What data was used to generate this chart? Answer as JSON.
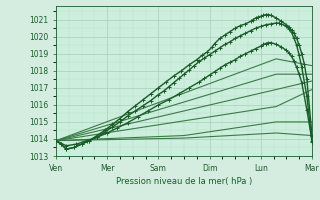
{
  "background_color": "#d4ede0",
  "plot_bg": "#cceedd",
  "grid_color_major": "#aaccbb",
  "grid_color_minor": "#bbddcc",
  "line_color_dark": "#1a5c28",
  "line_color_light": "#3a7a46",
  "xlabel": "Pression niveau de la mer( hPa )",
  "xtick_labels": [
    "Ven",
    "Mer",
    "Sam",
    "Dim",
    "Lun",
    "Mar"
  ],
  "xtick_positions": [
    0,
    1,
    2,
    3,
    4,
    5
  ],
  "ylim": [
    1013.0,
    1021.8
  ],
  "ytick_vals": [
    1013,
    1014,
    1015,
    1016,
    1017,
    1018,
    1019,
    1020,
    1021
  ],
  "series": [
    {
      "x": [
        0.0,
        0.1,
        0.2,
        0.35,
        0.5,
        0.65,
        0.8,
        0.95,
        1.1,
        1.25,
        1.4,
        1.55,
        1.7,
        1.85,
        2.0,
        2.15,
        2.3,
        2.45,
        2.6,
        2.75,
        2.85,
        2.95,
        3.05,
        3.1,
        3.2,
        3.3,
        3.4,
        3.5,
        3.6,
        3.7,
        3.8,
        3.85,
        3.9,
        3.95,
        4.0,
        4.05,
        4.1,
        4.15,
        4.2,
        4.3,
        4.4,
        4.5,
        4.55,
        4.6,
        4.65,
        4.7,
        4.75,
        4.8,
        4.85,
        4.9,
        5.0
      ],
      "y": [
        1013.9,
        1013.7,
        1013.4,
        1013.5,
        1013.7,
        1013.9,
        1014.2,
        1014.5,
        1014.85,
        1015.2,
        1015.6,
        1015.95,
        1016.3,
        1016.65,
        1017.0,
        1017.35,
        1017.7,
        1018.0,
        1018.35,
        1018.65,
        1018.9,
        1019.1,
        1019.4,
        1019.6,
        1019.9,
        1020.1,
        1020.3,
        1020.5,
        1020.65,
        1020.75,
        1020.9,
        1021.0,
        1021.1,
        1021.15,
        1021.2,
        1021.25,
        1021.3,
        1021.3,
        1021.25,
        1021.1,
        1020.9,
        1020.7,
        1020.55,
        1020.4,
        1020.2,
        1019.9,
        1019.5,
        1019.0,
        1018.4,
        1017.5,
        1014.2
      ],
      "style": "dark",
      "marker": true,
      "lw": 1.0
    },
    {
      "x": [
        0.0,
        0.1,
        0.2,
        0.35,
        0.5,
        0.65,
        0.8,
        0.95,
        1.1,
        1.25,
        1.4,
        1.55,
        1.7,
        1.85,
        2.0,
        2.1,
        2.2,
        2.3,
        2.4,
        2.5,
        2.6,
        2.7,
        2.8,
        2.9,
        3.0,
        3.1,
        3.2,
        3.3,
        3.4,
        3.5,
        3.6,
        3.7,
        3.8,
        3.9,
        4.0,
        4.1,
        4.2,
        4.3,
        4.35,
        4.4,
        4.5,
        4.55,
        4.6,
        4.65,
        4.7,
        4.75,
        4.8,
        4.9,
        5.0
      ],
      "y": [
        1013.9,
        1013.7,
        1013.4,
        1013.5,
        1013.7,
        1013.9,
        1014.1,
        1014.4,
        1014.7,
        1015.0,
        1015.35,
        1015.65,
        1015.95,
        1016.25,
        1016.6,
        1016.8,
        1017.05,
        1017.3,
        1017.55,
        1017.8,
        1018.05,
        1018.3,
        1018.55,
        1018.75,
        1018.95,
        1019.15,
        1019.35,
        1019.55,
        1019.7,
        1019.9,
        1020.05,
        1020.2,
        1020.35,
        1020.5,
        1020.6,
        1020.7,
        1020.75,
        1020.8,
        1020.8,
        1020.75,
        1020.6,
        1020.45,
        1020.25,
        1019.9,
        1019.5,
        1018.9,
        1018.2,
        1016.5,
        1013.8
      ],
      "style": "dark",
      "marker": true,
      "lw": 1.0
    },
    {
      "x": [
        0.0,
        0.2,
        0.4,
        0.6,
        0.8,
        1.0,
        1.2,
        1.4,
        1.6,
        1.8,
        2.0,
        2.2,
        2.4,
        2.6,
        2.8,
        2.9,
        3.0,
        3.1,
        3.2,
        3.3,
        3.4,
        3.5,
        3.6,
        3.7,
        3.8,
        3.9,
        4.0,
        4.05,
        4.1,
        4.15,
        4.2,
        4.3,
        4.4,
        4.5,
        4.55,
        4.6,
        4.65,
        4.7,
        4.75,
        4.8,
        4.9,
        5.0
      ],
      "y": [
        1013.9,
        1013.6,
        1013.7,
        1013.9,
        1014.1,
        1014.35,
        1014.65,
        1014.95,
        1015.3,
        1015.65,
        1016.0,
        1016.3,
        1016.65,
        1017.0,
        1017.35,
        1017.55,
        1017.75,
        1017.95,
        1018.15,
        1018.35,
        1018.5,
        1018.65,
        1018.85,
        1019.0,
        1019.15,
        1019.3,
        1019.45,
        1019.55,
        1019.6,
        1019.65,
        1019.65,
        1019.55,
        1019.4,
        1019.2,
        1019.05,
        1018.85,
        1018.55,
        1018.2,
        1017.8,
        1017.3,
        1015.7,
        1013.9
      ],
      "style": "dark",
      "marker": true,
      "lw": 1.0
    },
    {
      "x": [
        0.0,
        4.3,
        5.0
      ],
      "y": [
        1013.9,
        1018.7,
        1018.3
      ],
      "style": "light",
      "marker": false,
      "lw": 0.8
    },
    {
      "x": [
        0.0,
        4.3,
        5.0
      ],
      "y": [
        1013.9,
        1017.8,
        1017.8
      ],
      "style": "light",
      "marker": false,
      "lw": 0.8
    },
    {
      "x": [
        0.0,
        4.3,
        5.0
      ],
      "y": [
        1013.9,
        1016.9,
        1017.4
      ],
      "style": "light",
      "marker": false,
      "lw": 0.8
    },
    {
      "x": [
        0.0,
        4.3,
        5.0
      ],
      "y": [
        1013.9,
        1015.9,
        1016.9
      ],
      "style": "light",
      "marker": false,
      "lw": 0.8
    },
    {
      "x": [
        0.0,
        2.5,
        4.3,
        5.0
      ],
      "y": [
        1013.9,
        1014.2,
        1015.0,
        1015.0
      ],
      "style": "light",
      "marker": false,
      "lw": 0.8
    },
    {
      "x": [
        0.0,
        2.5,
        4.3,
        5.0
      ],
      "y": [
        1013.9,
        1014.05,
        1014.35,
        1014.2
      ],
      "style": "light",
      "marker": false,
      "lw": 0.8
    }
  ]
}
